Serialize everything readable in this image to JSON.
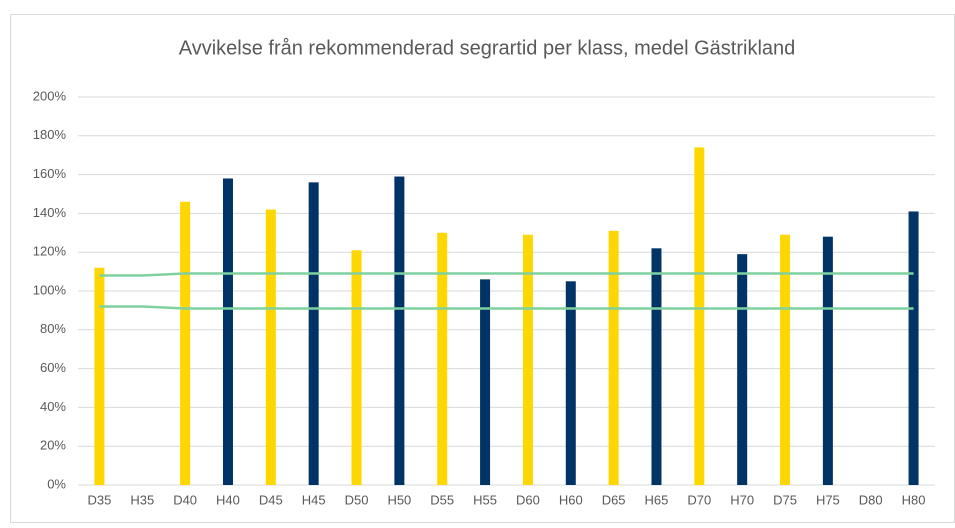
{
  "chart_data": {
    "type": "bar",
    "title": "Avvikelse från rekommenderad segrartid per klass, medel Gästrikland",
    "categories": [
      "D35",
      "H35",
      "D40",
      "H40",
      "D45",
      "H45",
      "D50",
      "H50",
      "D55",
      "H55",
      "D60",
      "H60",
      "D65",
      "H65",
      "D70",
      "H70",
      "D75",
      "H75",
      "D80",
      "H80"
    ],
    "series": [
      {
        "type": "bar",
        "colors": [
          "#ffd700",
          "#003366",
          "#ffd700",
          "#003366",
          "#ffd700",
          "#003366",
          "#ffd700",
          "#003366",
          "#ffd700",
          "#003366",
          "#ffd700",
          "#003366",
          "#ffd700",
          "#003366",
          "#ffd700",
          "#003366",
          "#ffd700",
          "#003366",
          "#ffd700",
          "#003366"
        ],
        "values": [
          112,
          null,
          146,
          158,
          142,
          156,
          121,
          159,
          130,
          106,
          129,
          105,
          131,
          122,
          174,
          119,
          129,
          128,
          null,
          141
        ]
      },
      {
        "type": "line",
        "color": "#7fd1a0",
        "values": [
          108,
          108,
          109,
          109,
          109,
          109,
          109,
          109,
          109,
          109,
          109,
          109,
          109,
          109,
          109,
          109,
          109,
          109,
          109,
          109
        ]
      },
      {
        "type": "line",
        "color": "#7fd1a0",
        "values": [
          92,
          92,
          91,
          91,
          91,
          91,
          91,
          91,
          91,
          91,
          91,
          91,
          91,
          91,
          91,
          91,
          91,
          91,
          91,
          91
        ]
      }
    ],
    "ylim": [
      0,
      200
    ],
    "yticks": [
      {
        "value": 0,
        "label": "0%"
      },
      {
        "value": 20,
        "label": "20%"
      },
      {
        "value": 40,
        "label": "40%"
      },
      {
        "value": 60,
        "label": "60%"
      },
      {
        "value": 80,
        "label": "80%"
      },
      {
        "value": 100,
        "label": "100%"
      },
      {
        "value": 120,
        "label": "120%"
      },
      {
        "value": 140,
        "label": "140%"
      },
      {
        "value": 160,
        "label": "160%"
      },
      {
        "value": 180,
        "label": "180%"
      },
      {
        "value": 200,
        "label": "200%"
      }
    ],
    "grid": true
  }
}
